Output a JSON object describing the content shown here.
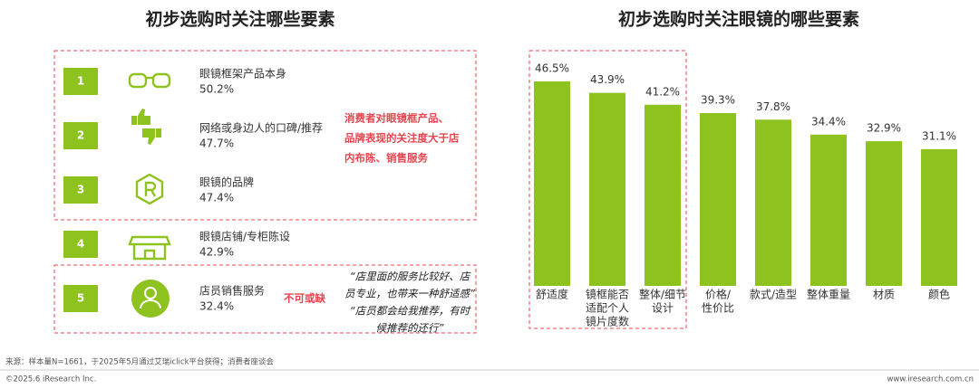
{
  "left": {
    "title": "初步选购时关注哪些要素",
    "items": [
      {
        "rank": "1",
        "label": "眼镜框架产品本身",
        "value": "50.2%"
      },
      {
        "rank": "2",
        "label": "网络或身边人的口碑/推荐",
        "value": "47.7%"
      },
      {
        "rank": "3",
        "label": "眼镜的品牌",
        "value": "47.4%"
      },
      {
        "rank": "4",
        "label": "眼镜店铺/专柜陈设",
        "value": "42.9%"
      },
      {
        "rank": "5",
        "label": "店员销售服务",
        "value": "32.4%"
      }
    ],
    "note": [
      "消费者对眼镜框产品、",
      "品牌表现的关注度大于店",
      "内布陈、销售服务"
    ],
    "tag": "不可或缺",
    "quote": [
      "“店里面的服务比较好、店",
      "员专业，也带来一种舒适感”",
      "“店员都会给我推荐，有时",
      "候推荐的还行”"
    ]
  },
  "chart_data": {
    "type": "bar",
    "title": "初步选购时关注眼镜的哪些要素",
    "categories": [
      [
        "舒适度"
      ],
      [
        "镜框能否",
        "适配个人",
        "镜片度数"
      ],
      [
        "整体/细节",
        "设计"
      ],
      [
        "价格/",
        "性价比"
      ],
      [
        "款式/造型"
      ],
      [
        "整体重量"
      ],
      [
        "材质"
      ],
      [
        "颜色"
      ]
    ],
    "values": [
      46.5,
      43.9,
      41.2,
      39.3,
      37.8,
      34.4,
      32.9,
      31.1
    ],
    "value_labels": [
      "46.5%",
      "43.9%",
      "41.2%",
      "39.3%",
      "37.8%",
      "34.4%",
      "32.9%",
      "31.1%"
    ],
    "color": "#8dc21f"
  },
  "footer": {
    "source": "来源：样本量N=1661，于2025年5月通过艾瑞iclick平台获得；消费者座谈会",
    "copyright": "©2025.6 iResearch Inc.",
    "url": "www.iresearch.com.cn"
  }
}
